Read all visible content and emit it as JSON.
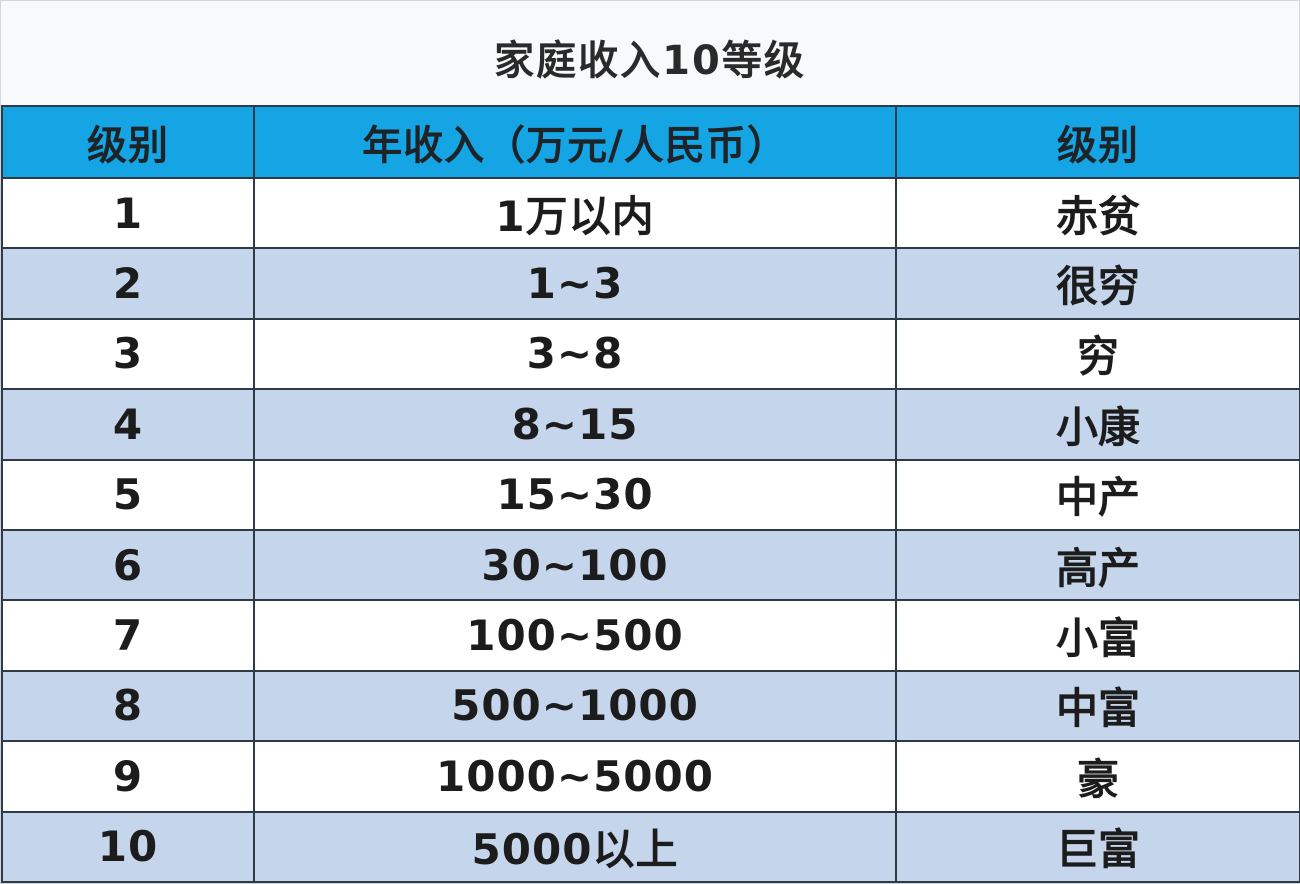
{
  "title": "家庭收入10等级",
  "headers": [
    "级别",
    "年收入（万元/人民币）",
    "级别"
  ],
  "rows": [
    {
      "level": "1",
      "income": "1万以内",
      "class": "赤贫"
    },
    {
      "level": "2",
      "income": "1~3",
      "class": "很穷"
    },
    {
      "level": "3",
      "income": "3~8",
      "class": "穷"
    },
    {
      "level": "4",
      "income": "8~15",
      "class": "小康"
    },
    {
      "level": "5",
      "income": "15~30",
      "class": "中产"
    },
    {
      "level": "6",
      "income": "30~100",
      "class": "高产"
    },
    {
      "level": "7",
      "income": "100~500",
      "class": "小富"
    },
    {
      "level": "8",
      "income": "500~1000",
      "class": "中富"
    },
    {
      "level": "9",
      "income": "1000~5000",
      "class": "豪"
    },
    {
      "level": "10",
      "income": "5000以上",
      "class": "巨富"
    }
  ],
  "colors": {
    "header_bg": "#16a5e4",
    "row_alt_bg": "#c5d6ec",
    "row_bg": "#ffffff",
    "title_bg": "#f7f9fa"
  }
}
